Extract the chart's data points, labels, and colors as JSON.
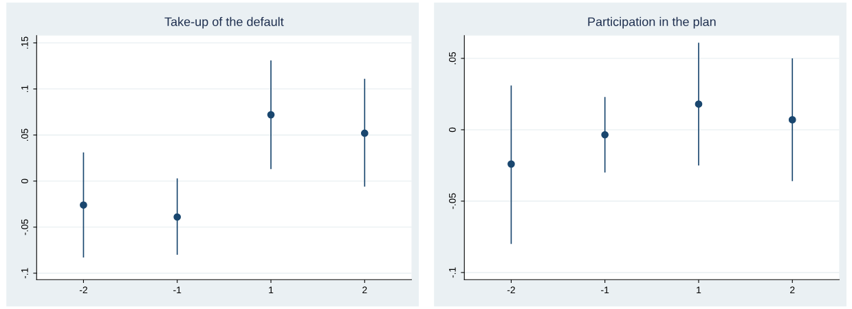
{
  "chart_data": [
    {
      "type": "scatter",
      "title": "Take-up of the default",
      "categories": [
        "-2",
        "-1",
        "1",
        "2"
      ],
      "color": "#1a476f",
      "marker": "circle",
      "grid": "y",
      "values": [
        -0.026,
        -0.039,
        0.072,
        0.052
      ],
      "errors": [
        [
          -0.083,
          0.031
        ],
        [
          -0.08,
          0.003
        ],
        [
          0.013,
          0.131
        ],
        [
          -0.006,
          0.111
        ]
      ],
      "ylim": [
        -0.107,
        0.158
      ],
      "yticks": [
        {
          "value": -0.1,
          "label": "-.1"
        },
        {
          "value": -0.05,
          "label": "-.05"
        },
        0,
        {
          "value": 0.05,
          "label": ".05"
        },
        {
          "value": 0.1,
          "label": ".1"
        },
        {
          "value": 0.15,
          "label": ".15"
        }
      ]
    },
    {
      "type": "scatter",
      "title": "Participation in the plan",
      "categories": [
        "-2",
        "-1",
        "1",
        "2"
      ],
      "color": "#1a476f",
      "marker": "circle",
      "grid": "y",
      "values": [
        -0.024,
        -0.0035,
        0.018,
        0.007
      ],
      "errors": [
        [
          -0.08,
          0.031
        ],
        [
          -0.03,
          0.023
        ],
        [
          -0.025,
          0.061
        ],
        [
          -0.036,
          0.05
        ]
      ],
      "ylim": [
        -0.105,
        0.066
      ],
      "yticks": [
        {
          "value": -0.1,
          "label": "-.1"
        },
        {
          "value": -0.05,
          "label": "-.05"
        },
        0,
        {
          "value": 0.05,
          "label": ".05"
        }
      ]
    }
  ]
}
